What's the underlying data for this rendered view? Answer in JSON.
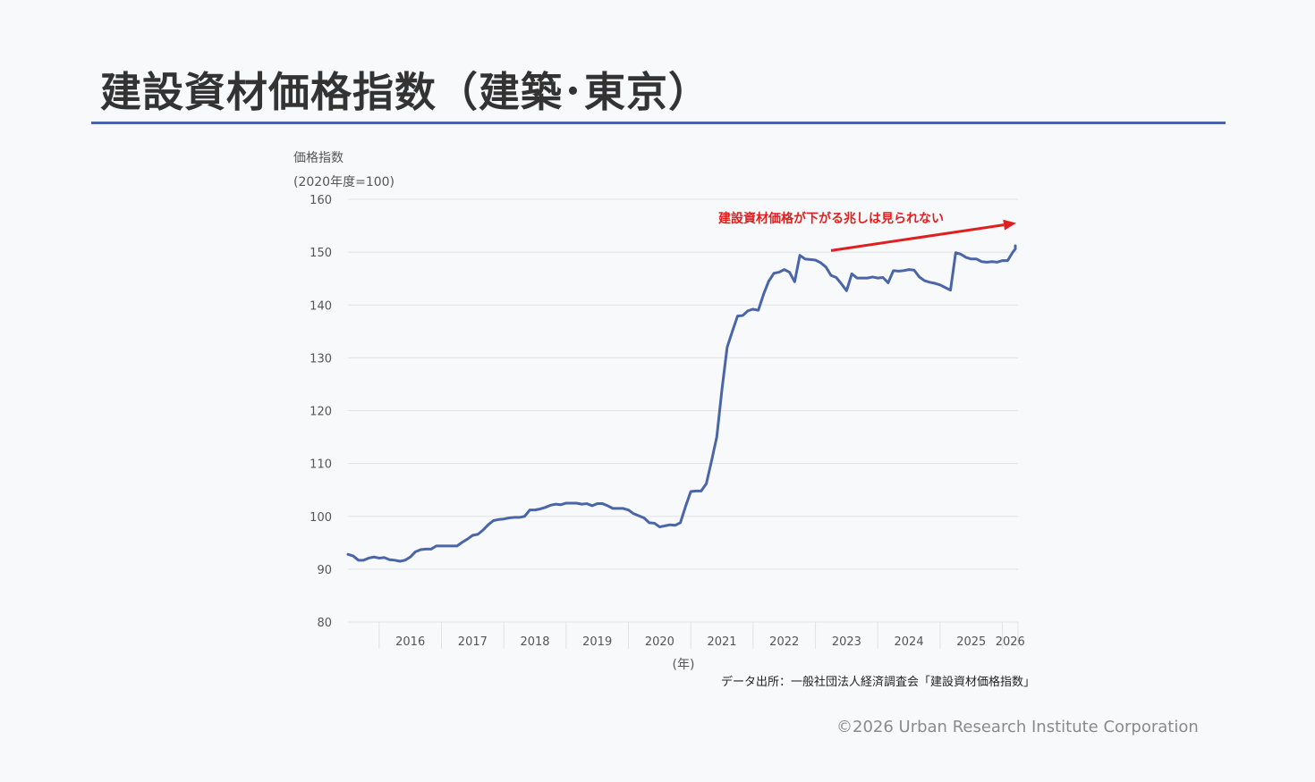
{
  "page": {
    "title": "建設資材価格指数（建築･東京）",
    "source": "データ出所：一般社団法人経済調査会「建設資材価格指数」",
    "copyright": "©2026 Urban Research Institute Corporation"
  },
  "colors": {
    "line": "#4a66a8",
    "annotation": "#e02020",
    "title_rule": "#4a64a8",
    "grid": "#e2e2e2"
  },
  "chart_data": {
    "type": "line",
    "ylabel_line1": "価格指数",
    "ylabel_line2": "(2020年度=100)",
    "xlabel": "(年)",
    "ylim": [
      80,
      160
    ],
    "yticks": [
      80,
      90,
      100,
      110,
      120,
      130,
      140,
      150,
      160
    ],
    "grid": "horizontal",
    "x_start": "2015-07",
    "x_end": "2026-04",
    "year_labels": [
      "2016",
      "2017",
      "2018",
      "2019",
      "2020",
      "2021",
      "2022",
      "2023",
      "2024",
      "2025",
      "2026"
    ],
    "annotation": {
      "text": "建設資材価格が下がる兆しは見られない",
      "arrow_from": [
        "2023-04",
        150.3
      ],
      "arrow_to": [
        "2026-04",
        155.5
      ]
    },
    "series": [
      {
        "values": [
          [
            "2015-07",
            92.8
          ],
          [
            "2015-08",
            92.5
          ],
          [
            "2015-09",
            91.7
          ],
          [
            "2015-10",
            91.7
          ],
          [
            "2015-11",
            92.1
          ],
          [
            "2015-12",
            92.3
          ],
          [
            "2016-01",
            92.1
          ],
          [
            "2016-02",
            92.2
          ],
          [
            "2016-03",
            91.8
          ],
          [
            "2016-04",
            91.7
          ],
          [
            "2016-05",
            91.5
          ],
          [
            "2016-06",
            91.7
          ],
          [
            "2016-07",
            92.3
          ],
          [
            "2016-08",
            93.3
          ],
          [
            "2016-09",
            93.7
          ],
          [
            "2016-10",
            93.8
          ],
          [
            "2016-11",
            93.8
          ],
          [
            "2016-12",
            94.4
          ],
          [
            "2017-01",
            94.4
          ],
          [
            "2017-02",
            94.4
          ],
          [
            "2017-03",
            94.4
          ],
          [
            "2017-04",
            94.4
          ],
          [
            "2017-05",
            95.1
          ],
          [
            "2017-06",
            95.7
          ],
          [
            "2017-07",
            96.4
          ],
          [
            "2017-08",
            96.6
          ],
          [
            "2017-09",
            97.4
          ],
          [
            "2017-10",
            98.4
          ],
          [
            "2017-11",
            99.2
          ],
          [
            "2017-12",
            99.4
          ],
          [
            "2018-01",
            99.5
          ],
          [
            "2018-02",
            99.7
          ],
          [
            "2018-03",
            99.8
          ],
          [
            "2018-04",
            99.8
          ],
          [
            "2018-05",
            100.0
          ],
          [
            "2018-06",
            101.2
          ],
          [
            "2018-07",
            101.2
          ],
          [
            "2018-08",
            101.4
          ],
          [
            "2018-09",
            101.7
          ],
          [
            "2018-10",
            102.1
          ],
          [
            "2018-11",
            102.3
          ],
          [
            "2018-12",
            102.2
          ],
          [
            "2019-01",
            102.5
          ],
          [
            "2019-02",
            102.5
          ],
          [
            "2019-03",
            102.5
          ],
          [
            "2019-04",
            102.3
          ],
          [
            "2019-05",
            102.4
          ],
          [
            "2019-06",
            102.0
          ],
          [
            "2019-07",
            102.4
          ],
          [
            "2019-08",
            102.4
          ],
          [
            "2019-09",
            102.0
          ],
          [
            "2019-10",
            101.5
          ],
          [
            "2019-11",
            101.5
          ],
          [
            "2019-12",
            101.5
          ],
          [
            "2020-01",
            101.2
          ],
          [
            "2020-02",
            100.5
          ],
          [
            "2020-03",
            100.1
          ],
          [
            "2020-04",
            99.7
          ],
          [
            "2020-05",
            98.8
          ],
          [
            "2020-06",
            98.7
          ],
          [
            "2020-07",
            98.0
          ],
          [
            "2020-08",
            98.2
          ],
          [
            "2020-09",
            98.4
          ],
          [
            "2020-10",
            98.3
          ],
          [
            "2020-11",
            98.8
          ],
          [
            "2020-12",
            101.9
          ],
          [
            "2021-01",
            104.7
          ],
          [
            "2021-02",
            104.8
          ],
          [
            "2021-03",
            104.8
          ],
          [
            "2021-04",
            106.2
          ],
          [
            "2021-05",
            110.5
          ],
          [
            "2021-06",
            115.0
          ],
          [
            "2021-07",
            124.0
          ],
          [
            "2021-08",
            132.0
          ],
          [
            "2021-09",
            135.0
          ],
          [
            "2021-10",
            137.9
          ],
          [
            "2021-11",
            138.0
          ],
          [
            "2021-12",
            138.9
          ],
          [
            "2022-01",
            139.2
          ],
          [
            "2022-02",
            139.0
          ],
          [
            "2022-03",
            142.0
          ],
          [
            "2022-04",
            144.5
          ],
          [
            "2022-05",
            146.0
          ],
          [
            "2022-06",
            146.2
          ],
          [
            "2022-07",
            146.7
          ],
          [
            "2022-08",
            146.2
          ],
          [
            "2022-09",
            144.4
          ],
          [
            "2022-10",
            149.4
          ],
          [
            "2022-11",
            148.7
          ],
          [
            "2022-12",
            148.6
          ],
          [
            "2023-01",
            148.5
          ],
          [
            "2023-02",
            148.0
          ],
          [
            "2023-03",
            147.2
          ],
          [
            "2023-04",
            145.6
          ],
          [
            "2023-05",
            145.2
          ],
          [
            "2023-06",
            144.0
          ],
          [
            "2023-07",
            142.7
          ],
          [
            "2023-08",
            145.9
          ],
          [
            "2023-09",
            145.1
          ],
          [
            "2023-10",
            145.1
          ],
          [
            "2023-11",
            145.1
          ],
          [
            "2023-12",
            145.3
          ],
          [
            "2024-01",
            145.1
          ],
          [
            "2024-02",
            145.2
          ],
          [
            "2024-03",
            144.2
          ],
          [
            "2024-04",
            146.5
          ],
          [
            "2024-05",
            146.4
          ],
          [
            "2024-06",
            146.5
          ],
          [
            "2024-07",
            146.7
          ],
          [
            "2024-08",
            146.6
          ],
          [
            "2024-09",
            145.3
          ],
          [
            "2024-10",
            144.6
          ],
          [
            "2024-11",
            144.3
          ],
          [
            "2024-12",
            144.1
          ],
          [
            "2025-01",
            143.8
          ],
          [
            "2025-02",
            143.3
          ],
          [
            "2025-03",
            142.8
          ],
          [
            "2025-04",
            149.9
          ],
          [
            "2025-05",
            149.6
          ],
          [
            "2025-06",
            149.0
          ],
          [
            "2025-07",
            148.7
          ],
          [
            "2025-08",
            148.7
          ],
          [
            "2025-09",
            148.2
          ],
          [
            "2025-10",
            148.1
          ],
          [
            "2025-11",
            148.2
          ],
          [
            "2025-12",
            148.1
          ],
          [
            "2026-01",
            148.4
          ],
          [
            "2026-02",
            148.4
          ],
          [
            "2026-03",
            150.0
          ],
          [
            "2026-04",
            150.6
          ],
          [
            "2026-05",
            151.2
          ]
        ]
      }
    ]
  }
}
